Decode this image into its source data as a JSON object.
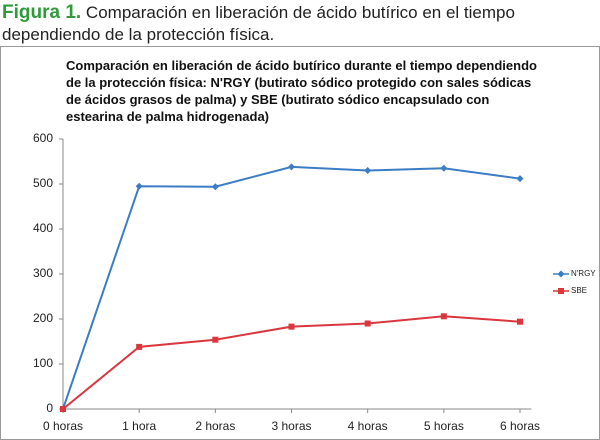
{
  "figure": {
    "label": "Figura 1.",
    "caption": "Comparación en liberación de ácido butírico en el tiempo dependiendo de la protección física."
  },
  "chart_data": {
    "type": "line",
    "title": "Comparación en liberación de ácido butírico durante el tiempo dependiendo de la protección física: N'RGY (butirato sódico protegido con sales sódicas de ácidos grasos de palma) y SBE (butirato sódico encapsulado con estearina de palma hidrogenada)",
    "categories": [
      "0 horas",
      "1 hora",
      "2 horas",
      "3 horas",
      "4 horas",
      "5 horas",
      "6 horas"
    ],
    "series": [
      {
        "name": "N'RGY",
        "color": "#3a7dc4",
        "marker": "diamond",
        "values": [
          0,
          495,
          494,
          538,
          530,
          535,
          512
        ]
      },
      {
        "name": "SBE",
        "color": "#d9363e",
        "marker": "square",
        "values": [
          0,
          138,
          154,
          183,
          190,
          206,
          194
        ]
      }
    ],
    "ylim": [
      0,
      600
    ],
    "yticks": [
      0,
      100,
      200,
      300,
      400,
      500,
      600
    ],
    "grid": false,
    "legend": "right"
  }
}
